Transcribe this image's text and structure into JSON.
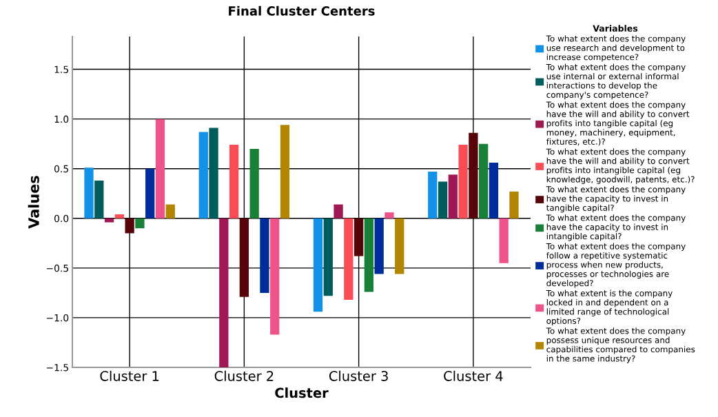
{
  "chart_data": {
    "type": "bar",
    "title": "Final Cluster Centers",
    "xlabel": "Cluster",
    "ylabel": "Values",
    "legend_title": "Variables",
    "categories": [
      "Cluster 1",
      "Cluster 2",
      "Cluster 3",
      "Cluster 4"
    ],
    "ylim": [
      -1.5,
      1.83
    ],
    "yticks": [
      {
        "value": -1.5,
        "label": "−1.5"
      },
      {
        "value": -1,
        "label": "−1.0"
      },
      {
        "value": -0.5,
        "label": "−0.5"
      },
      {
        "value": 0,
        "label": "0.0"
      },
      0.5,
      {
        "value": 1,
        "label": "1.0"
      },
      1.5
    ],
    "grid": true,
    "legend": "right",
    "series": [
      {
        "name": "To what extent does the company\nuse research and development to\nincrease competence?",
        "color": "#1192e8",
        "values": [
          0.51,
          0.87,
          -0.94,
          0.47
        ]
      },
      {
        "name": "To what extent does the company\nuse internal or external informal\ninteractions to develop the\ncompany's competence?",
        "color": "#005d5d",
        "values": [
          0.38,
          0.91,
          -0.78,
          0.37
        ]
      },
      {
        "name": "To what extent does the company\nhave the will and ability to convert\nprofits into tangible capital (eg\nmoney, machinery, equipment,\nfixtures, etc.)?",
        "color": "#9f1853",
        "values": [
          -0.04,
          -1.5,
          0.14,
          0.44
        ]
      },
      {
        "name": "To what extent does the company\nhave the will and ability to convert\nprofits into intangible capital (eg\nknowledge, goodwill, patents, etc.)?",
        "color": "#fa4d56",
        "values": [
          0.04,
          0.74,
          -0.82,
          0.74
        ]
      },
      {
        "name": "To what extent does the company\nhave the capacity to invest in\ntangible capital?",
        "color": "#570408",
        "values": [
          -0.15,
          -0.79,
          -0.38,
          0.86
        ]
      },
      {
        "name": "To what extent does the company\nhave the capacity to invest in\nintangible capital?",
        "color": "#198038",
        "values": [
          -0.1,
          0.7,
          -0.74,
          0.75
        ]
      },
      {
        "name": "To what extent does the company\nfollow a repetitive systematic\nprocess when new products,\nprocesses or technologies are\ndeveloped?",
        "color": "#002d9c",
        "values": [
          0.5,
          -0.75,
          -0.56,
          0.56
        ]
      },
      {
        "name": "To what extent is the company\nlocked in and dependent on a\nlimited range of technological\noptions?",
        "color": "#ee538b",
        "values": [
          1.0,
          -1.17,
          0.06,
          -0.45
        ]
      },
      {
        "name": "To what extent does the company\npossess unique resources and\ncapabilities compared to companies\nin the same industry?",
        "color": "#b28600",
        "values": [
          0.14,
          0.94,
          -0.56,
          0.27
        ]
      }
    ]
  }
}
